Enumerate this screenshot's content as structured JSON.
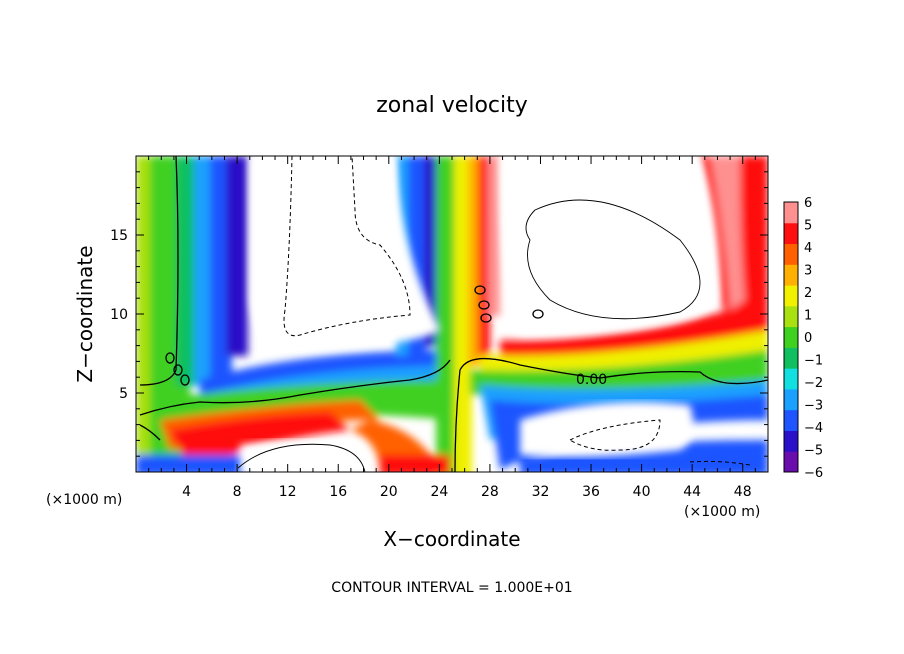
{
  "chart_data": {
    "type": "heatmap",
    "title": "zonal velocity",
    "xlabel": "X−coordinate",
    "ylabel": "Z−coordinate",
    "x_unit_label": "(×1000 m)",
    "z_unit_label": "(×1000 m)",
    "x_ticks": [
      "4",
      "8",
      "12",
      "16",
      "20",
      "24",
      "28",
      "32",
      "36",
      "40",
      "44",
      "48"
    ],
    "z_ticks": [
      "5",
      "10",
      "15"
    ],
    "xlim": [
      0,
      50
    ],
    "zlim": [
      0,
      20
    ],
    "colorbar": {
      "ticks": [
        "6",
        "5",
        "4",
        "3",
        "2",
        "1",
        "0",
        "−1",
        "−2",
        "−3",
        "−4",
        "−5",
        "−6"
      ],
      "range": [
        -6,
        6
      ],
      "colors": [
        "#6a0dad",
        "#2a10c8",
        "#1f55ff",
        "#1aa0ff",
        "#12e0e0",
        "#10c060",
        "#40d020",
        "#a8e010",
        "#f0f000",
        "#ffb000",
        "#ff6000",
        "#ff1010",
        "#ff9090"
      ]
    },
    "contour_label": "0.00",
    "footer": "CONTOUR INTERVAL = 1.000E+01"
  }
}
